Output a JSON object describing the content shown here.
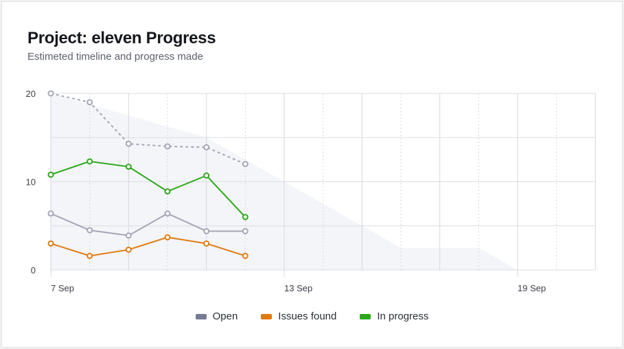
{
  "header": {
    "title": "Project: eleven Progress",
    "subtitle": "Estimeted timeline and progress made"
  },
  "chart_data": {
    "type": "line",
    "x": [
      "7 Sep",
      "8 Sep",
      "9 Sep",
      "10 Sep",
      "11 Sep",
      "12 Sep"
    ],
    "xaxis": {
      "start": "7 Sep",
      "end": "21 Sep",
      "tick_labels": [
        "7 Sep",
        "13 Sep",
        "19 Sep"
      ]
    },
    "ylim": [
      0,
      20
    ],
    "yticks": [
      0,
      10,
      20
    ],
    "grid": true,
    "legend_position": "bottom",
    "area": {
      "x": [
        "7 Sep",
        "8 Sep",
        "9 Sep",
        "10 Sep",
        "11 Sep",
        "12 Sep",
        "13 Sep",
        "14 Sep",
        "15 Sep",
        "16 Sep",
        "17 Sep",
        "18 Sep",
        "19 Sep"
      ],
      "values": [
        20,
        18.75,
        17.5,
        16.25,
        15,
        12.5,
        10,
        7.5,
        5,
        2.5,
        2.5,
        2.5,
        0
      ],
      "color": "#f4f5f9"
    },
    "series": [
      {
        "values": [
          20,
          19,
          14.3,
          14,
          13.9,
          12
        ],
        "color": "#a3a6b5",
        "dashed": true
      },
      {
        "name": "In progress",
        "values": [
          10.8,
          12.3,
          11.7,
          8.9,
          10.7,
          6
        ],
        "color": "#2ca81a"
      },
      {
        "name": "Open",
        "values": [
          6.4,
          4.5,
          3.9,
          6.4,
          4.4,
          4.4
        ],
        "color": "#a3a6b5",
        "legend_color": "#767b93"
      },
      {
        "name": "Issues found",
        "values": [
          3,
          1.6,
          2.3,
          3.7,
          3,
          1.6
        ],
        "color": "#e07a10"
      }
    ]
  },
  "legend": [
    {
      "label": "Open",
      "color": "#767b93"
    },
    {
      "label": "Issues found",
      "color": "#e07a10"
    },
    {
      "label": "In progress",
      "color": "#2ca81a"
    }
  ]
}
